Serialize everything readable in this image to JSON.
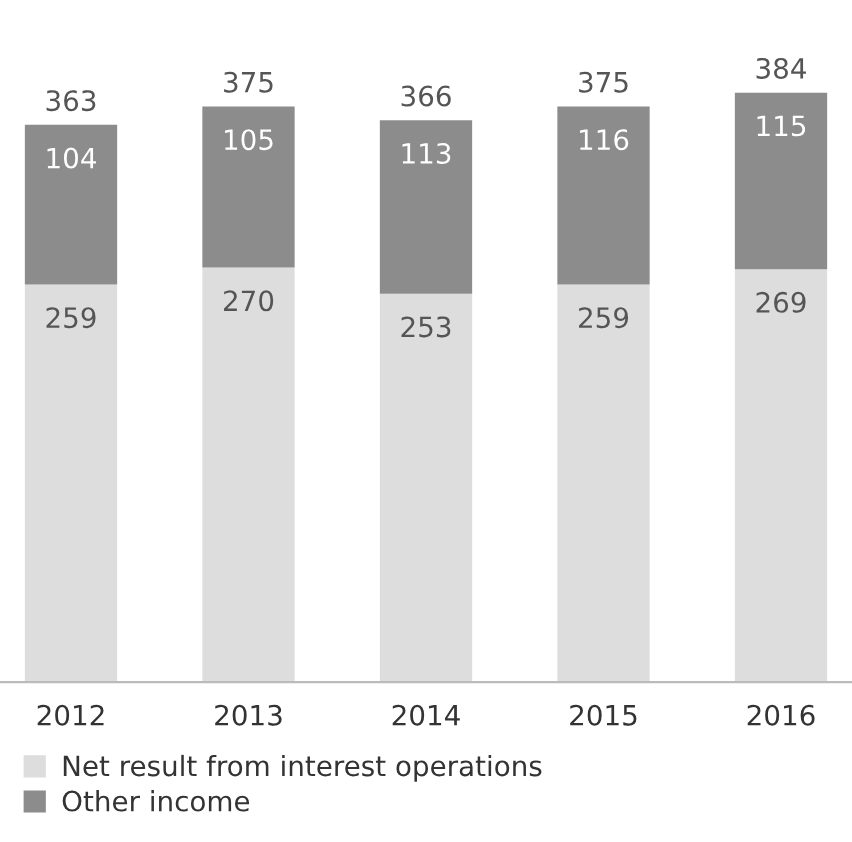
{
  "chart_data": {
    "type": "bar",
    "stacked": true,
    "categories": [
      "2012",
      "2013",
      "2014",
      "2015",
      "2016"
    ],
    "series": [
      {
        "name": "Net result from interest operations",
        "color": "#dddddd",
        "values": [
          259,
          270,
          253,
          259,
          269
        ]
      },
      {
        "name": "Other income",
        "color": "#8c8c8c",
        "values": [
          104,
          105,
          113,
          116,
          115
        ]
      }
    ],
    "data_labels": true,
    "totals": [
      "363",
      "375",
      "366",
      "375",
      "384"
    ],
    "legend": "bottom",
    "grid": false
  }
}
